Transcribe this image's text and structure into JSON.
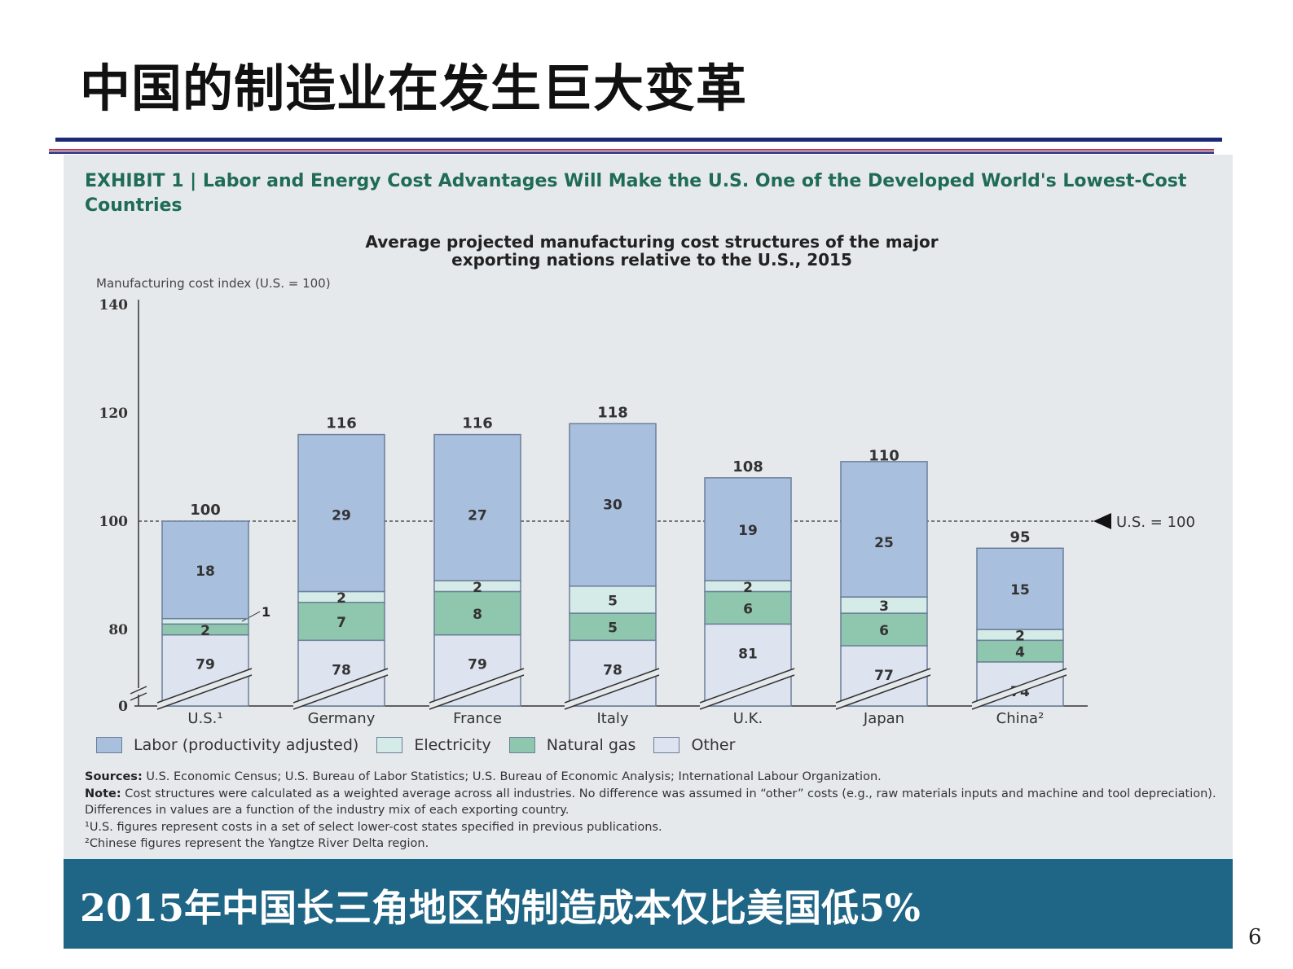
{
  "slide": {
    "title": "中国的制造业在发生巨大变革",
    "banner": "2015年中国长三角地区的制造成本仅比美国低5%",
    "page_number": "6"
  },
  "exhibit": {
    "title": "EXHIBIT 1 | Labor and Energy Cost Advantages Will Make the U.S. One of the Developed World's Lowest-Cost Countries",
    "subtitle_line1": "Average projected manufacturing cost structures of the major",
    "subtitle_line2": "exporting nations relative to the U.S., 2015",
    "sources": "U.S. Economic Census; U.S. Bureau of Labor Statistics; U.S. Bureau of Economic Analysis; International Labour Organization.",
    "sources_label": "Sources:",
    "note_label": "Note:",
    "note": "Cost structures were calculated as a weighted average across all industries. No difference was assumed in “other” costs (e.g., raw materials inputs and machine and tool depreciation). Differences in values are a function of the industry mix of each exporting country.",
    "footnote1": "¹U.S. figures represent costs in a set of select lower-cost states specified in previous publications.",
    "footnote2": "²Chinese figures represent the Yangtze River Delta region."
  },
  "chart_data": {
    "type": "bar",
    "stacked": true,
    "ylabel": "Manufacturing cost index (U.S. = 100)",
    "yticks": [
      "140",
      "120",
      "100",
      "80",
      "0"
    ],
    "ylim": [
      0,
      140
    ],
    "axis_break": true,
    "reference_line": {
      "value": 100,
      "label": "U.S. = 100"
    },
    "categories": [
      "U.S.¹",
      "Germany",
      "France",
      "Italy",
      "U.K.",
      "Japan",
      "China²"
    ],
    "totals": [
      100,
      116,
      116,
      118,
      108,
      110,
      95
    ],
    "series": [
      {
        "name": "Other",
        "color": "#dde3ef",
        "values": [
          79,
          78,
          79,
          78,
          81,
          77,
          74
        ]
      },
      {
        "name": "Natural gas",
        "color": "#8fc6ae",
        "values": [
          2,
          7,
          8,
          5,
          6,
          6,
          4
        ]
      },
      {
        "name": "Electricity",
        "color": "#d5ebe7",
        "values": [
          1,
          2,
          2,
          5,
          2,
          3,
          2
        ]
      },
      {
        "name": "Labor (productivity adjusted)",
        "color": "#a9bfde",
        "values": [
          18,
          29,
          27,
          30,
          19,
          25,
          15
        ]
      }
    ],
    "legend": [
      "Labor (productivity adjusted)",
      "Electricity",
      "Natural gas",
      "Other"
    ],
    "legend_position": "bottom"
  }
}
